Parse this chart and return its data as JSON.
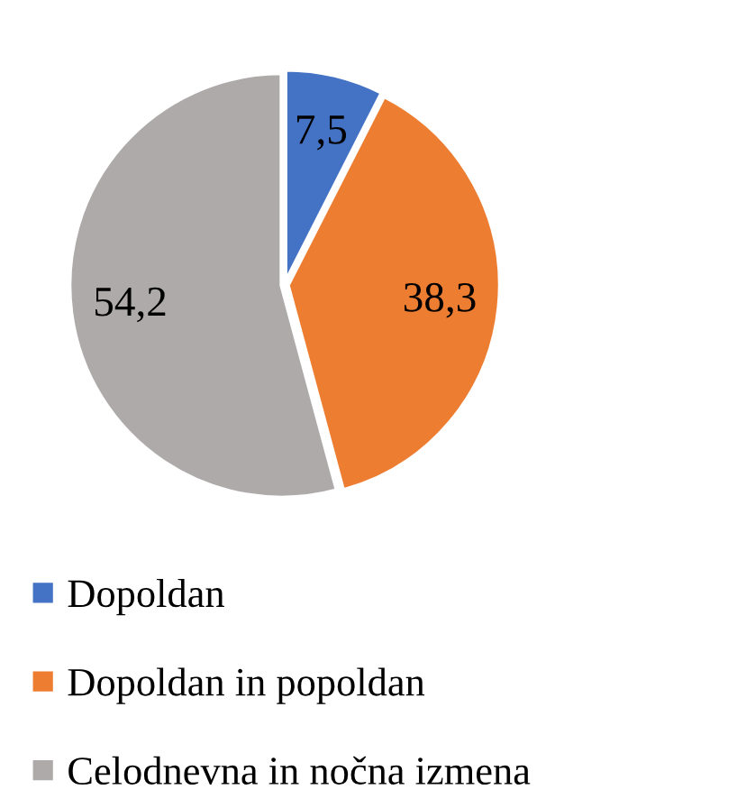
{
  "chart_data": {
    "type": "pie",
    "categories": [
      "Dopoldan",
      "Dopoldan in popoldan",
      "Celodnevna in nočna izmena"
    ],
    "values": [
      7.5,
      38.3,
      54.2
    ],
    "value_labels": [
      "7,5",
      "38,3",
      "54,2"
    ],
    "colors": [
      "#4472c4",
      "#ed7d31",
      "#aeaaaa"
    ],
    "legend": "bottom"
  }
}
